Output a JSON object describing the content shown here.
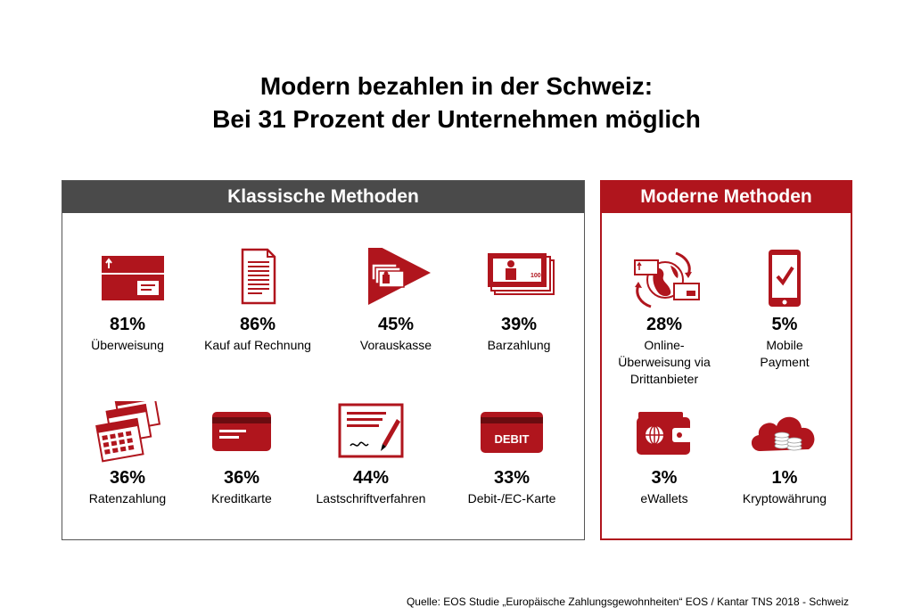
{
  "title_line1": "Modern bezahlen in der Schweiz:",
  "title_line2": "Bei 31 Prozent der Unternehmen möglich",
  "source": "Quelle: EOS Studie „Europäische Zahlungsgewohnheiten“ EOS / Kantar TNS 2018 - Schweiz",
  "colors": {
    "accent": "#b0151d",
    "dark_header": "#4a4a4a"
  },
  "chart_data": {
    "type": "table",
    "groups": [
      {
        "name": "Klassische Methoden",
        "items": [
          {
            "label": "Überweisung",
            "value": 81,
            "display": "81%",
            "icon": "bank-transfer-icon"
          },
          {
            "label": "Kauf auf Rechnung",
            "value": 86,
            "display": "86%",
            "icon": "invoice-icon"
          },
          {
            "label": "Vorauskasse",
            "value": 45,
            "display": "45%",
            "icon": "prepayment-icon"
          },
          {
            "label": "Barzahlung",
            "value": 39,
            "display": "39%",
            "icon": "cash-icon"
          },
          {
            "label": "Ratenzahlung",
            "value": 36,
            "display": "36%",
            "icon": "calendar-icon"
          },
          {
            "label": "Kreditkarte",
            "value": 36,
            "display": "36%",
            "icon": "credit-card-icon"
          },
          {
            "label": "Lastschriftverfahren",
            "value": 44,
            "display": "44%",
            "icon": "signature-form-icon"
          },
          {
            "label": "Debit-/EC-Karte",
            "value": 33,
            "display": "33%",
            "icon": "debit-card-icon",
            "card_text": "DEBIT"
          }
        ]
      },
      {
        "name": "Moderne Methoden",
        "items": [
          {
            "label_lines": [
              "Online-",
              "Überweisung via",
              "Drittanbieter"
            ],
            "value": 28,
            "display": "28%",
            "icon": "globe-transfer-icon"
          },
          {
            "label_lines": [
              "Mobile",
              "Payment"
            ],
            "value": 5,
            "display": "5%",
            "icon": "tablet-check-icon"
          },
          {
            "label": "eWallets",
            "value": 3,
            "display": "3%",
            "icon": "wallet-icon"
          },
          {
            "label": "Kryptowährung",
            "value": 1,
            "display": "1%",
            "icon": "crypto-cloud-icon"
          }
        ]
      }
    ]
  }
}
